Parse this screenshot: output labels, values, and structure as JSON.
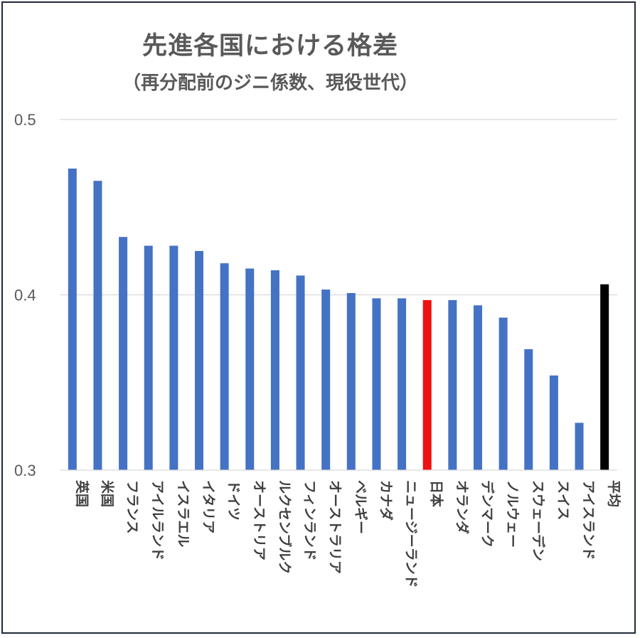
{
  "chart_data": {
    "type": "bar",
    "title": "先進各国における格差",
    "subtitle": "（再分配前のジニ係数、現役世代）",
    "xlabel": "",
    "ylabel": "",
    "ylim": [
      0.3,
      0.5
    ],
    "yticks": [
      "0.3",
      "0.4",
      "0.5"
    ],
    "grid": true,
    "categories": [
      "英国",
      "米国",
      "フランス",
      "アイルランド",
      "イスラエル",
      "イタリア",
      "ドイツ",
      "オーストリア",
      "ルクセンブルク",
      "フィンランド",
      "オーストラリア",
      "ベルギー",
      "カナダ",
      "ニュージーランド",
      "日本",
      "オランダ",
      "デンマーク",
      "ノルウェー",
      "スウェーデン",
      "スイス",
      "アイスランド",
      "平均"
    ],
    "values": [
      0.472,
      0.465,
      0.433,
      0.428,
      0.428,
      0.425,
      0.418,
      0.415,
      0.414,
      0.411,
      0.403,
      0.401,
      0.398,
      0.398,
      0.397,
      0.397,
      0.394,
      0.387,
      0.369,
      0.354,
      0.327,
      0.406
    ],
    "colors": {
      "default": "#4472c4",
      "日本": "#ee1111",
      "平均": "#000000"
    }
  }
}
